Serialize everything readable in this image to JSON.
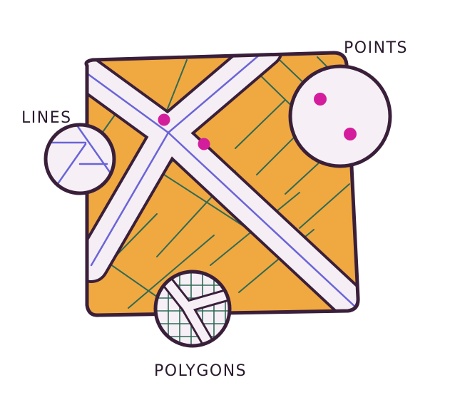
{
  "labels": {
    "points": "POINTS",
    "lines": "LINES",
    "polygons": "POLYGONS"
  },
  "colors": {
    "map_fill": "#f0a840",
    "outline": "#3a1f3a",
    "road_fill": "#f5eef5",
    "road_centerline": "#6a64d8",
    "parcel_lines": "#2f6a55",
    "point_marker": "#d41d9c",
    "callout_fill": "#f6f0f6"
  },
  "icons": {
    "point_marker": "point-marker-icon",
    "line_sample": "lines-sample-icon",
    "polygon_sample": "polygons-sample-icon"
  }
}
